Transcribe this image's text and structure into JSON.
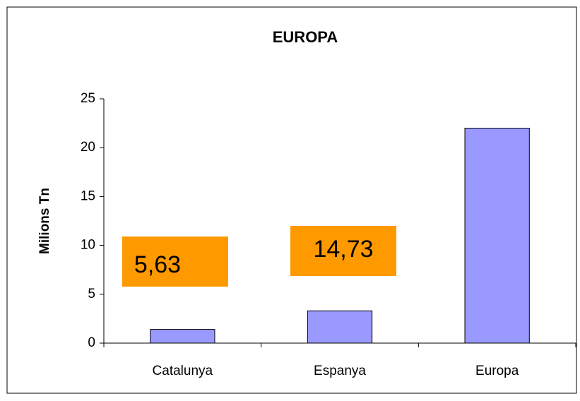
{
  "chart_data": {
    "type": "bar",
    "title": "EUROPA",
    "y_label": "Milions Tn",
    "categories": [
      "Catalunya",
      "Espanya",
      "Europa"
    ],
    "values": [
      1.4,
      3.3,
      22
    ],
    "color": "#9999ff",
    "ylim": [
      0,
      25
    ],
    "yticks": [
      0,
      5,
      10,
      15,
      20,
      25
    ],
    "grid": false,
    "annotations": [
      "5,63",
      "14,73"
    ],
    "annotation_color": "#ff9900"
  }
}
